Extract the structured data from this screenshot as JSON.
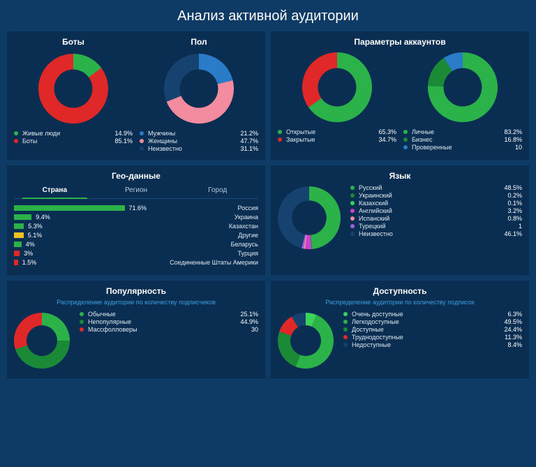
{
  "title": "Анализ активной аудитории",
  "colors": {
    "bg": "#0d3b66",
    "panel": "#0a2e52",
    "green": "#2bb34a",
    "brightGreen": "#3bd35a",
    "darkGreen": "#1a8a36",
    "red": "#e02828",
    "blue": "#2a7cc9",
    "lightBlue": "#4a9ae0",
    "pink": "#f48ca0",
    "navy": "#16426f",
    "magenta": "#d040d0",
    "violet": "#a060e0",
    "yellow": "#f0c020"
  },
  "bots": {
    "title": "Боты",
    "type": "donut",
    "inner": 0.55,
    "items": [
      {
        "label": "Живые люди",
        "value": 14.9,
        "color": "#2bb34a"
      },
      {
        "label": "Боты",
        "value": 85.1,
        "color": "#e02828"
      }
    ]
  },
  "gender": {
    "title": "Пол",
    "type": "donut",
    "inner": 0.55,
    "items": [
      {
        "label": "Мужчины",
        "value": 21.2,
        "color": "#2a7cc9"
      },
      {
        "label": "Женщины",
        "value": 47.7,
        "color": "#f48ca0"
      },
      {
        "label": "Неизвестно",
        "value": 31.1,
        "color": "#16426f"
      }
    ]
  },
  "accountParams": {
    "title": "Параметры аккаунтов",
    "left": {
      "type": "donut",
      "inner": 0.55,
      "items": [
        {
          "label": "Открытые",
          "value": 65.3,
          "color": "#2bb34a"
        },
        {
          "label": "Закрытые",
          "value": 34.7,
          "color": "#e02828"
        }
      ]
    },
    "right": {
      "type": "donut",
      "inner": 0.55,
      "items": [
        {
          "label": "Личные",
          "value": 83.2,
          "color": "#2bb34a"
        },
        {
          "label": "Бизнес",
          "value": 16.8,
          "color": "#1a8a36"
        },
        {
          "label": "Проверенные",
          "value": 10,
          "color": "#2a7cc9",
          "display": "10"
        }
      ]
    }
  },
  "geo": {
    "title": "Гео-данные",
    "tabs": [
      "Страна",
      "Регион",
      "Город"
    ],
    "activeTab": 0,
    "bars": [
      {
        "label": "Россия",
        "value": 71.6,
        "color": "#2bb34a"
      },
      {
        "label": "Украина",
        "value": 9.4,
        "color": "#2bb34a"
      },
      {
        "label": "Казахстан",
        "value": 5.3,
        "color": "#2bb34a"
      },
      {
        "label": "Другие",
        "value": 5.1,
        "color": "#f0c020"
      },
      {
        "label": "Беларусь",
        "value": 4,
        "color": "#2bb34a"
      },
      {
        "label": "Турция",
        "value": 3,
        "color": "#e02828"
      },
      {
        "label": "Соединенные Штаты Америки",
        "value": 1.5,
        "color": "#e02828"
      }
    ]
  },
  "language": {
    "title": "Язык",
    "type": "donut",
    "inner": 0.55,
    "items": [
      {
        "label": "Русский",
        "value": 48.5,
        "color": "#2bb34a"
      },
      {
        "label": "Украинский",
        "value": 0.2,
        "color": "#1a8a36"
      },
      {
        "label": "Казахский",
        "value": 0.1,
        "color": "#3bd35a"
      },
      {
        "label": "Английский",
        "value": 3.2,
        "color": "#d040d0"
      },
      {
        "label": "Испанский",
        "value": 0.8,
        "color": "#f48ca0"
      },
      {
        "label": "Турецкий",
        "value": 1,
        "color": "#a060e0",
        "display": "1"
      },
      {
        "label": "Неизвестно",
        "value": 46.1,
        "color": "#16426f"
      }
    ]
  },
  "popularity": {
    "title": "Популярность",
    "subtitle": "Распределение аудитории по количеству подписчиков",
    "type": "donut",
    "inner": 0.55,
    "items": [
      {
        "label": "Обычные",
        "value": 25.1,
        "color": "#2bb34a"
      },
      {
        "label": "Непопулярные",
        "value": 44.9,
        "color": "#1a8a36"
      },
      {
        "label": "Массфолловеры",
        "value": 30,
        "color": "#e02828",
        "display": "30"
      }
    ]
  },
  "availability": {
    "title": "Доступность",
    "subtitle": "Распределение аудитории по количеству подписок",
    "type": "donut",
    "inner": 0.55,
    "items": [
      {
        "label": "Очень доступные",
        "value": 6.3,
        "color": "#3bd35a"
      },
      {
        "label": "Легкодоступные",
        "value": 49.5,
        "color": "#2bb34a"
      },
      {
        "label": "Доступные",
        "value": 24.4,
        "color": "#1a8a36"
      },
      {
        "label": "Труднодоступные",
        "value": 11.3,
        "color": "#e02828"
      },
      {
        "label": "Недоступные",
        "value": 8.4,
        "color": "#16426f"
      }
    ]
  }
}
